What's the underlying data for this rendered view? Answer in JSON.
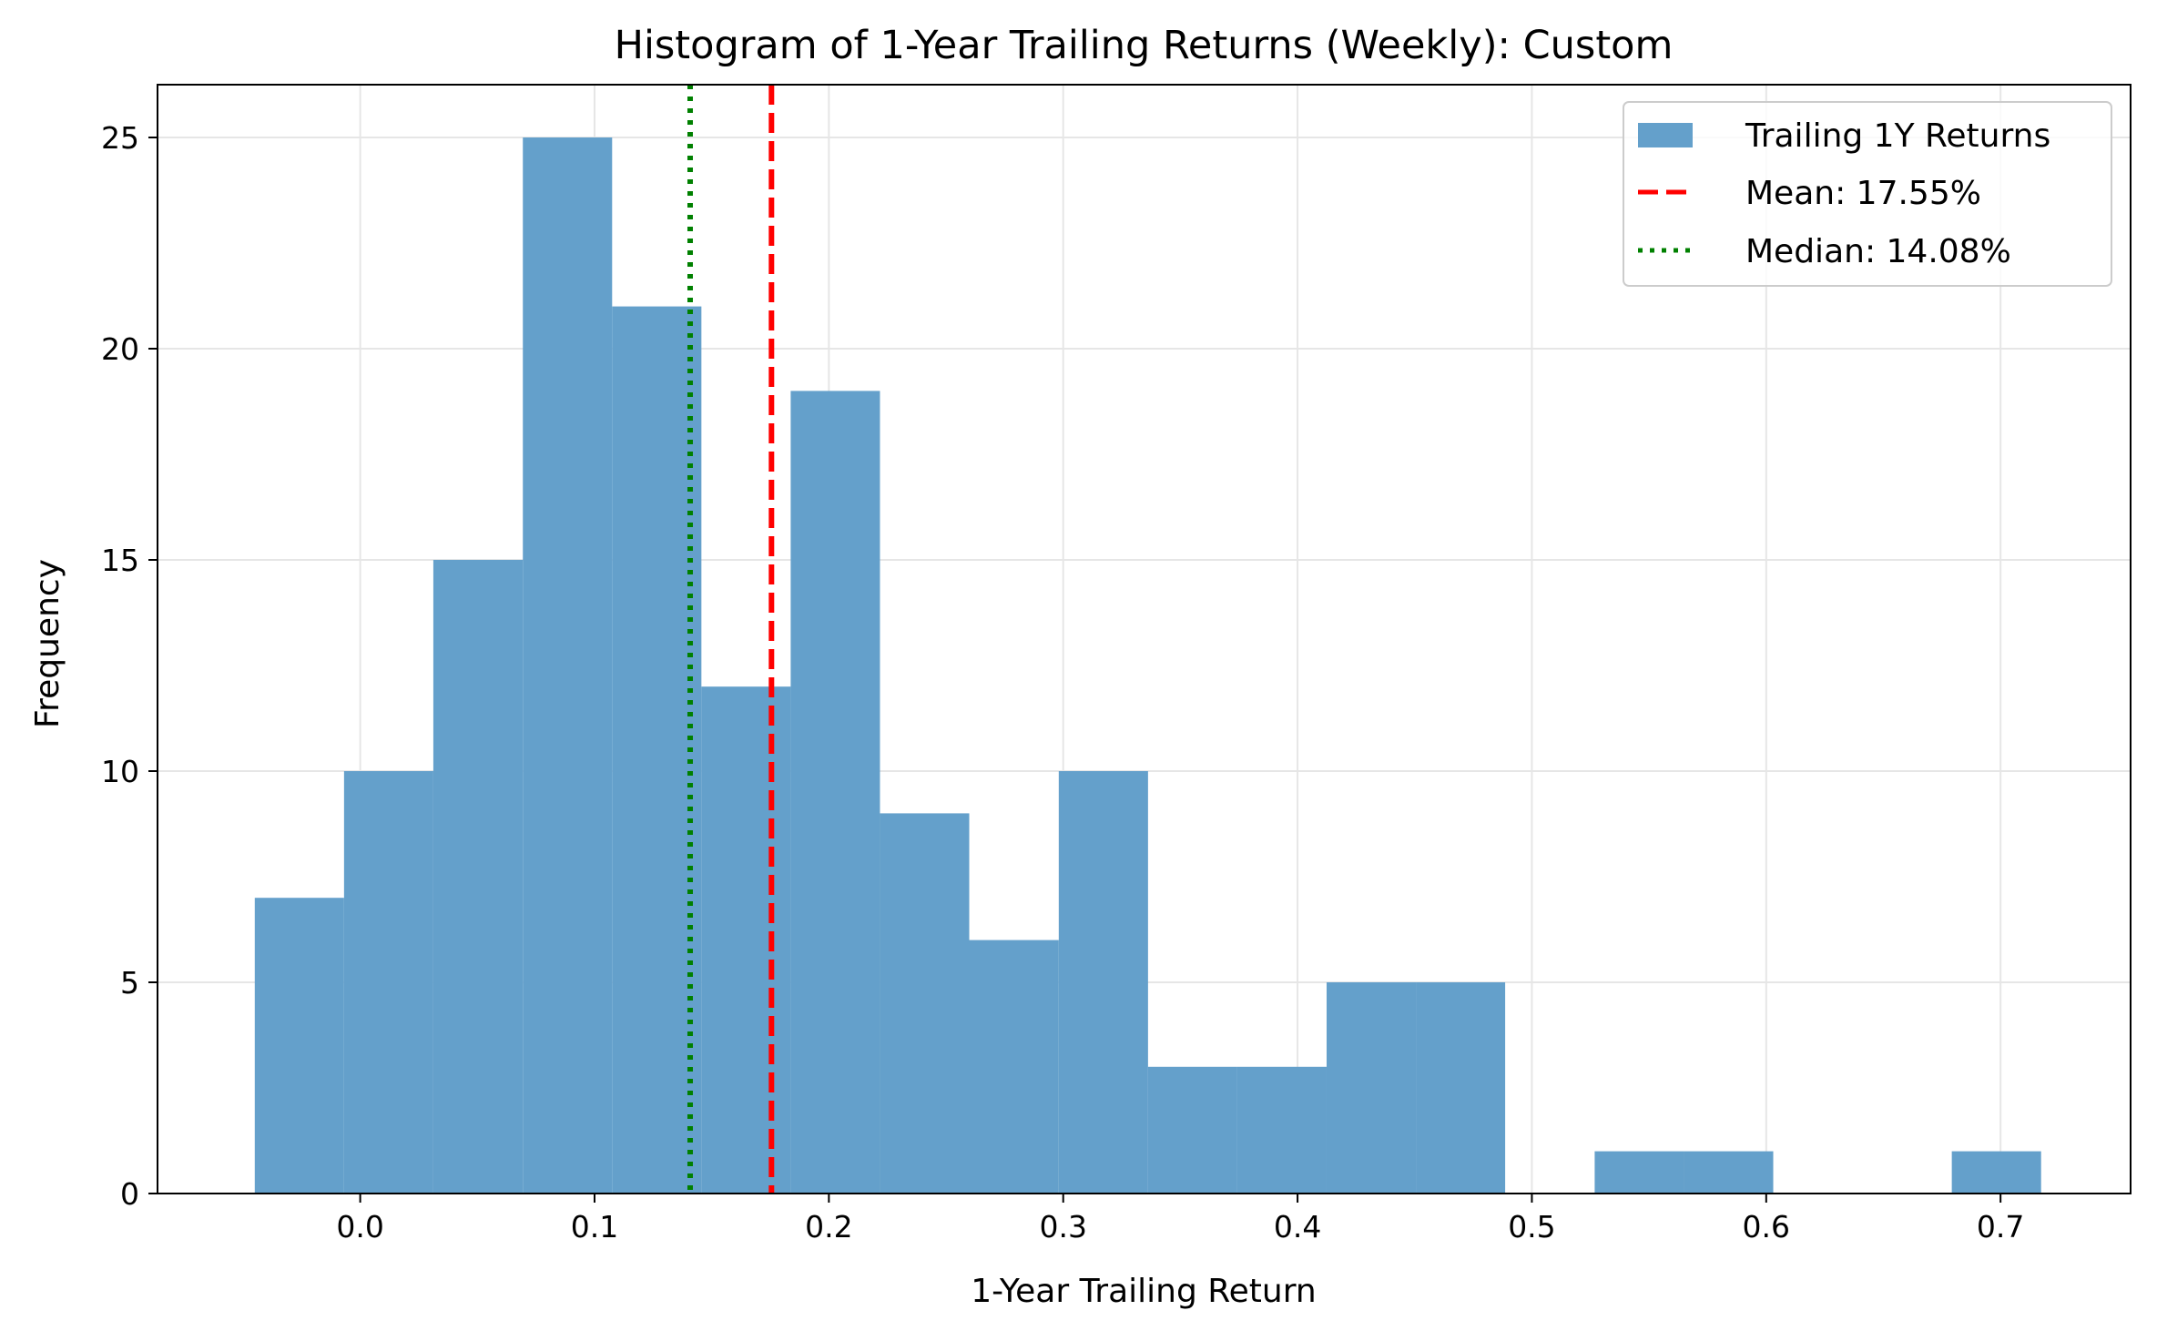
{
  "chart_data": {
    "type": "bar",
    "title": "Histogram of 1-Year Trailing Returns (Weekly): Custom",
    "xlabel": "1-Year Trailing Return",
    "ylabel": "Frequency",
    "xlim": [
      -0.0865,
      0.7555
    ],
    "ylim": [
      0,
      26.25
    ],
    "xticks": [
      0.0,
      0.1,
      0.2,
      0.3,
      0.4,
      0.5,
      0.6,
      0.7
    ],
    "xtick_labels": [
      "0.0",
      "0.1",
      "0.2",
      "0.3",
      "0.4",
      "0.5",
      "0.6",
      "0.7"
    ],
    "yticks": [
      0,
      5,
      10,
      15,
      20,
      25
    ],
    "ytick_labels": [
      "0",
      "5",
      "10",
      "15",
      "20",
      "25"
    ],
    "grid": true,
    "legend_position": "top-right",
    "bins": [
      {
        "x0": -0.045,
        "x1": -0.0069,
        "count": 7
      },
      {
        "x0": -0.0069,
        "x1": 0.0312,
        "count": 10
      },
      {
        "x0": 0.0312,
        "x1": 0.0694,
        "count": 15
      },
      {
        "x0": 0.0694,
        "x1": 0.1075,
        "count": 25
      },
      {
        "x0": 0.1075,
        "x1": 0.1456,
        "count": 21
      },
      {
        "x0": 0.1456,
        "x1": 0.1837,
        "count": 12
      },
      {
        "x0": 0.1837,
        "x1": 0.2218,
        "count": 19
      },
      {
        "x0": 0.2218,
        "x1": 0.2599,
        "count": 9
      },
      {
        "x0": 0.2599,
        "x1": 0.2981,
        "count": 6
      },
      {
        "x0": 0.2981,
        "x1": 0.3362,
        "count": 10
      },
      {
        "x0": 0.3362,
        "x1": 0.3743,
        "count": 3
      },
      {
        "x0": 0.3743,
        "x1": 0.4124,
        "count": 3
      },
      {
        "x0": 0.4124,
        "x1": 0.4505,
        "count": 5
      },
      {
        "x0": 0.4505,
        "x1": 0.4886,
        "count": 5
      },
      {
        "x0": 0.4886,
        "x1": 0.5268,
        "count": 0
      },
      {
        "x0": 0.5268,
        "x1": 0.5649,
        "count": 1
      },
      {
        "x0": 0.5649,
        "x1": 0.603,
        "count": 1
      },
      {
        "x0": 0.603,
        "x1": 0.6411,
        "count": 0
      },
      {
        "x0": 0.6411,
        "x1": 0.6792,
        "count": 0
      },
      {
        "x0": 0.6792,
        "x1": 0.7173,
        "count": 1
      }
    ],
    "mean": 0.1755,
    "median": 0.1408,
    "legend": {
      "bars_label": "Trailing 1Y Returns",
      "mean_label": "Mean: 17.55%",
      "median_label": "Median: 14.08%"
    },
    "colors": {
      "bars": "#64a0cb",
      "mean_line": "#ff0000",
      "median_line": "#008000",
      "grid": "#e6e6e6"
    }
  }
}
